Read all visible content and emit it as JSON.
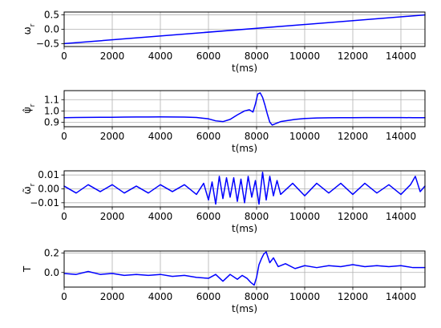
{
  "figure": {
    "line_color": "#0000ff",
    "grid": true
  },
  "chart_data": [
    {
      "type": "line",
      "xlabel": "t(ms)",
      "ylabel": "ω_r",
      "xlim": [
        0,
        15000
      ],
      "ylim": [
        -0.6,
        0.6
      ],
      "xticks": [
        0,
        2000,
        4000,
        6000,
        8000,
        10000,
        12000,
        14000
      ],
      "xtick_labels": [
        "0",
        "2000",
        "4000",
        "6000",
        "8000",
        "10000",
        "12000",
        "14000"
      ],
      "yticks": [
        -0.5,
        0.0,
        0.5
      ],
      "ytick_labels": [
        "−0.5",
        "0.0",
        "0.5"
      ],
      "grid": true,
      "series": [
        {
          "x": [
            0,
            15000
          ],
          "y": [
            -0.5,
            0.5
          ]
        }
      ]
    },
    {
      "type": "line",
      "xlabel": "t(ms)",
      "ylabel": "ψ̂_r",
      "xlim": [
        0,
        15000
      ],
      "ylim": [
        0.86,
        1.18
      ],
      "xticks": [
        0,
        2000,
        4000,
        6000,
        8000,
        10000,
        12000,
        14000
      ],
      "xtick_labels": [
        "0",
        "2000",
        "4000",
        "6000",
        "8000",
        "10000",
        "12000",
        "14000"
      ],
      "yticks": [
        0.9,
        1.0,
        1.1
      ],
      "ytick_labels": [
        "0.9",
        "1.0",
        "1.1"
      ],
      "grid": true,
      "series": [
        {
          "x": [
            0,
            500,
            1000,
            1500,
            2000,
            2500,
            3000,
            3500,
            4000,
            4500,
            5000,
            5500,
            6000,
            6300,
            6600,
            6900,
            7200,
            7500,
            7700,
            7850,
            7950,
            8050,
            8150,
            8250,
            8350,
            8450,
            8550,
            8650,
            8800,
            9000,
            9300,
            9600,
            10000,
            10500,
            11000,
            11500,
            12000,
            12500,
            13000,
            13500,
            14000,
            14500,
            15000
          ],
          "y": [
            0.94,
            0.942,
            0.943,
            0.944,
            0.944,
            0.945,
            0.946,
            0.946,
            0.947,
            0.946,
            0.945,
            0.942,
            0.93,
            0.912,
            0.905,
            0.925,
            0.965,
            1.0,
            1.01,
            0.99,
            1.06,
            1.15,
            1.16,
            1.12,
            1.05,
            0.97,
            0.9,
            0.875,
            0.888,
            0.905,
            0.915,
            0.925,
            0.933,
            0.937,
            0.939,
            0.94,
            0.94,
            0.941,
            0.941,
            0.941,
            0.941,
            0.94,
            0.94
          ]
        }
      ]
    },
    {
      "type": "line",
      "xlabel": "t(ms)",
      "ylabel": "ω̃_r",
      "xlim": [
        0,
        15000
      ],
      "ylim": [
        -0.013,
        0.013
      ],
      "xticks": [
        0,
        2000,
        4000,
        6000,
        8000,
        10000,
        12000,
        14000
      ],
      "xtick_labels": [
        "0",
        "2000",
        "4000",
        "6000",
        "8000",
        "10000",
        "12000",
        "14000"
      ],
      "yticks": [
        -0.01,
        0.0,
        0.01
      ],
      "ytick_labels": [
        "−0.01",
        "0.00",
        "0.01"
      ],
      "grid": true,
      "series": [
        {
          "x": [
            0,
            500,
            1000,
            1500,
            2000,
            2500,
            3000,
            3500,
            4000,
            4500,
            5000,
            5500,
            5800,
            6000,
            6150,
            6300,
            6450,
            6600,
            6750,
            6900,
            7050,
            7200,
            7350,
            7500,
            7650,
            7800,
            7950,
            8100,
            8250,
            8400,
            8550,
            8700,
            8850,
            9000,
            9500,
            10000,
            10500,
            11000,
            11500,
            12000,
            12500,
            13000,
            13500,
            14000,
            14400,
            14600,
            14800,
            15000
          ],
          "y": [
            0.002,
            -0.003,
            0.003,
            -0.002,
            0.003,
            -0.003,
            0.002,
            -0.003,
            0.003,
            -0.002,
            0.003,
            -0.004,
            0.004,
            -0.008,
            0.005,
            -0.011,
            0.009,
            -0.007,
            0.008,
            -0.006,
            0.008,
            -0.009,
            0.007,
            -0.01,
            0.009,
            -0.006,
            0.006,
            -0.011,
            0.012,
            -0.008,
            0.009,
            -0.005,
            0.006,
            -0.004,
            0.004,
            -0.005,
            0.004,
            -0.003,
            0.004,
            -0.004,
            0.004,
            -0.003,
            0.003,
            -0.004,
            0.003,
            0.009,
            -0.002,
            0.002
          ]
        }
      ]
    },
    {
      "type": "line",
      "xlabel": "t(ms)",
      "ylabel": "T",
      "xlim": [
        0,
        15000
      ],
      "ylim": [
        -0.15,
        0.22
      ],
      "xticks": [
        0,
        2000,
        4000,
        6000,
        8000,
        10000,
        12000,
        14000
      ],
      "xtick_labels": [
        "0",
        "2000",
        "4000",
        "6000",
        "8000",
        "10000",
        "12000",
        "14000"
      ],
      "yticks": [
        0.0,
        0.2
      ],
      "ytick_labels": [
        "0.0",
        "0.2"
      ],
      "grid": true,
      "series": [
        {
          "x": [
            0,
            500,
            1000,
            1500,
            2000,
            2500,
            3000,
            3500,
            4000,
            4500,
            5000,
            5500,
            6000,
            6300,
            6600,
            6900,
            7200,
            7400,
            7600,
            7750,
            7900,
            8000,
            8100,
            8200,
            8300,
            8400,
            8550,
            8700,
            8900,
            9200,
            9600,
            10000,
            10500,
            11000,
            11500,
            12000,
            12500,
            13000,
            13500,
            14000,
            14500,
            15000
          ],
          "y": [
            -0.01,
            -0.02,
            0.01,
            -0.02,
            -0.01,
            -0.03,
            -0.02,
            -0.03,
            -0.02,
            -0.04,
            -0.03,
            -0.05,
            -0.06,
            -0.02,
            -0.09,
            -0.02,
            -0.07,
            -0.03,
            -0.06,
            -0.1,
            -0.13,
            -0.05,
            0.08,
            0.14,
            0.19,
            0.21,
            0.1,
            0.15,
            0.06,
            0.09,
            0.04,
            0.07,
            0.05,
            0.07,
            0.06,
            0.08,
            0.06,
            0.07,
            0.06,
            0.07,
            0.05,
            0.05
          ]
        }
      ]
    }
  ]
}
